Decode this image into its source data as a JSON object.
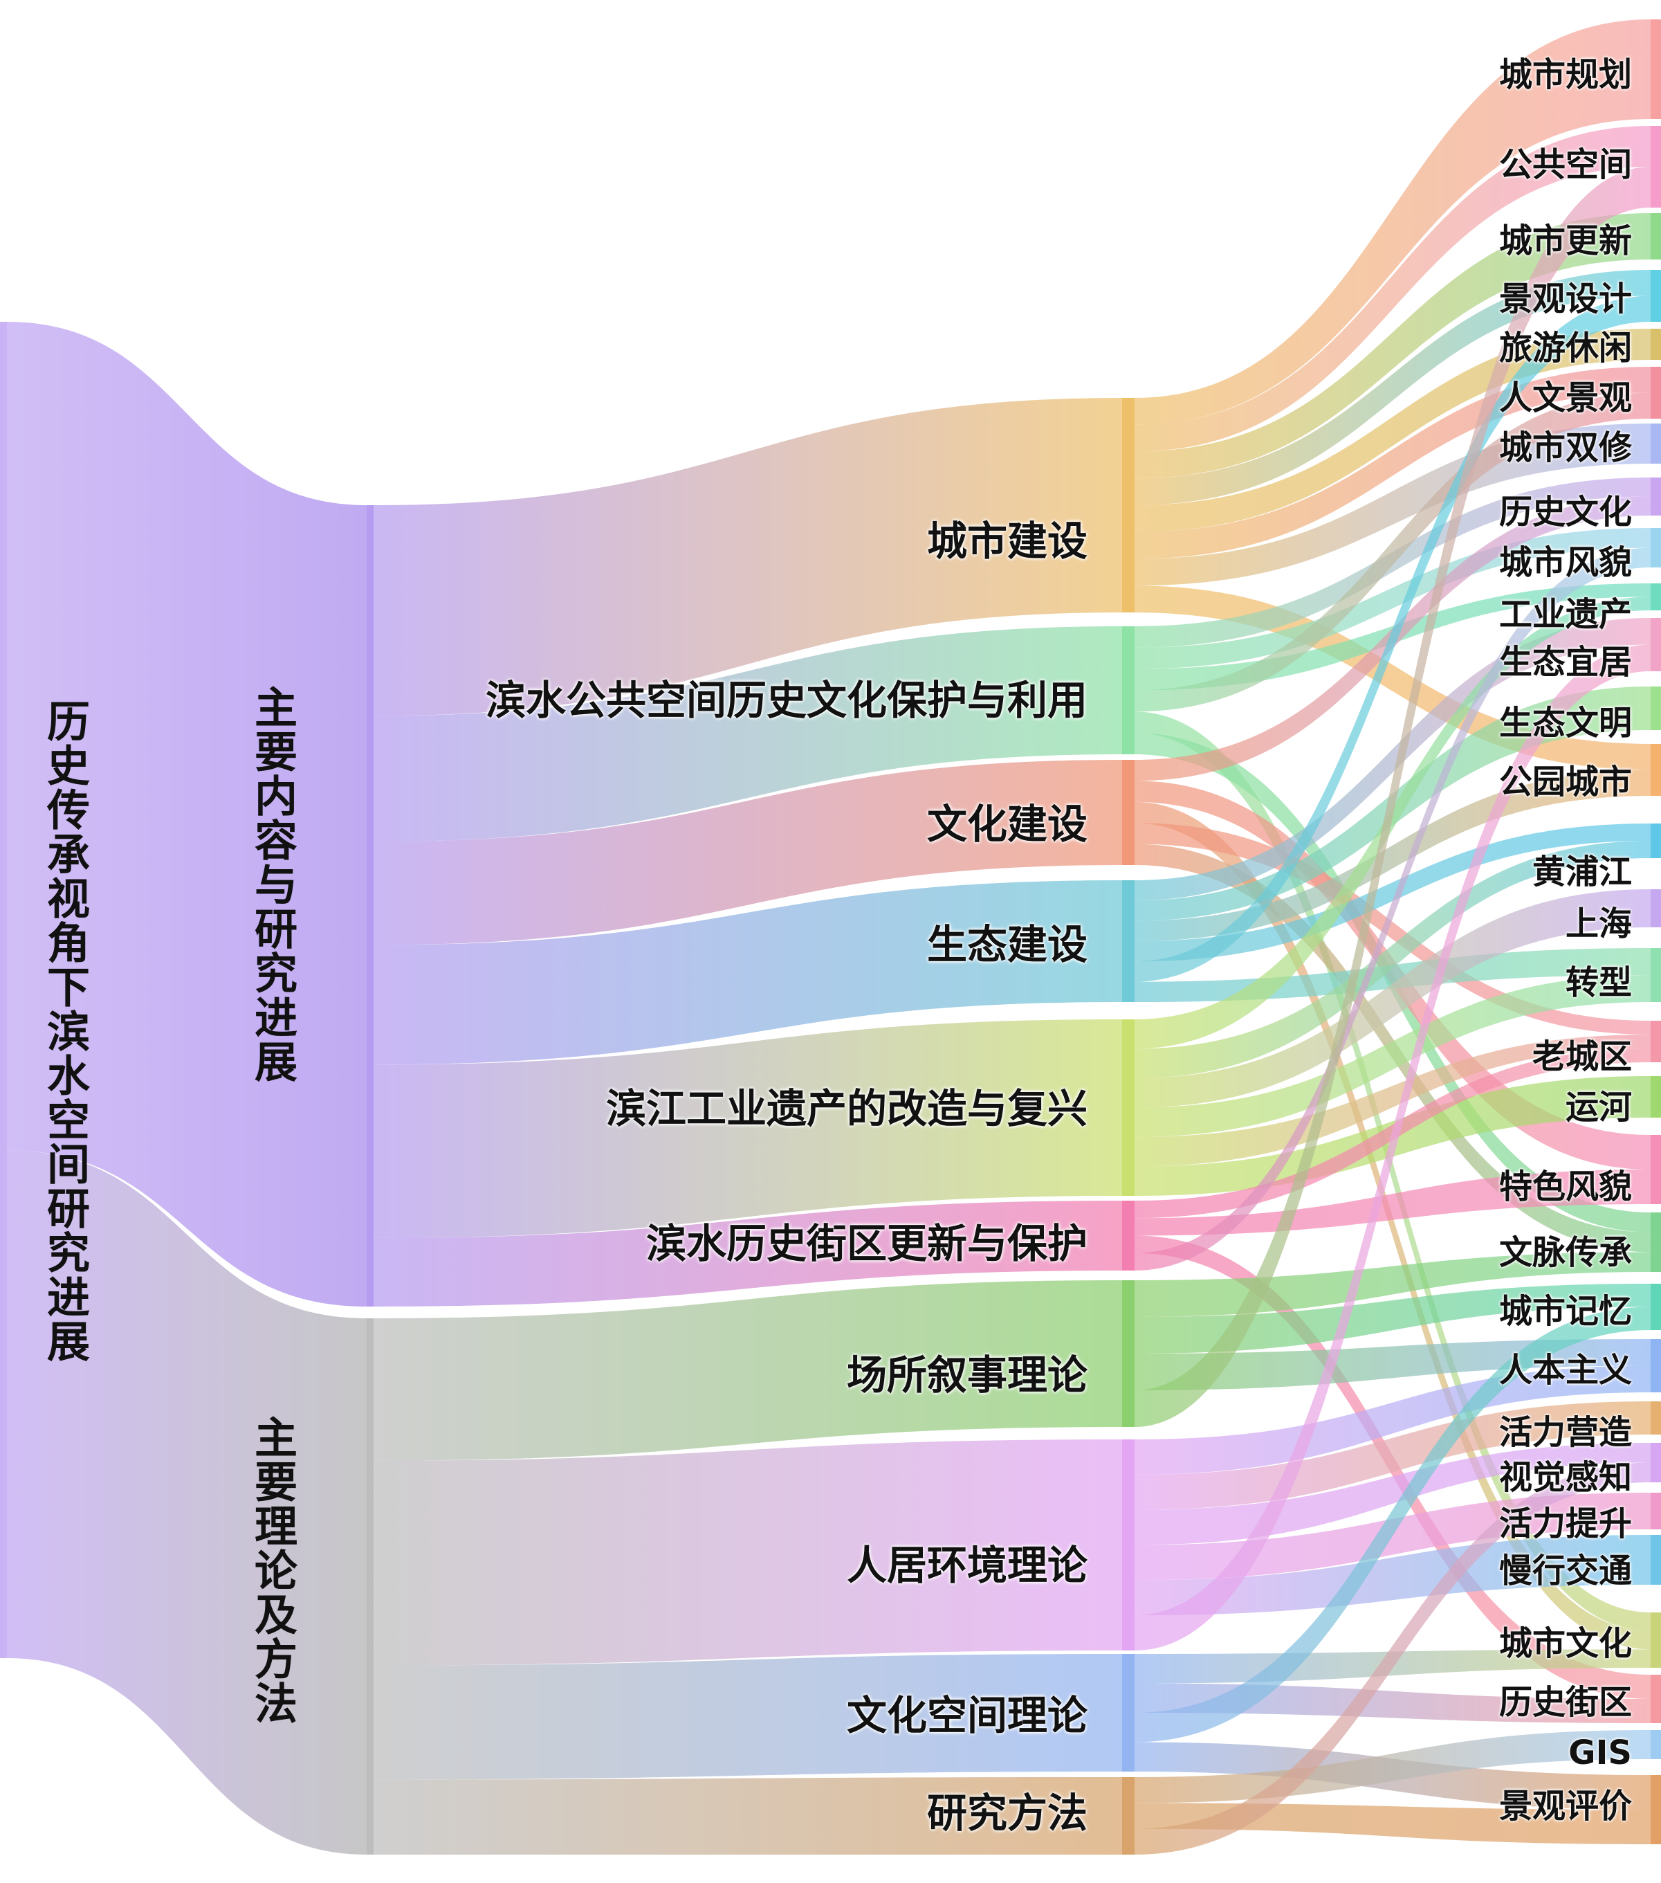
{
  "root": {
    "label": "历史传承视角下滨水空间研究进展",
    "color": "#c9b3f4"
  },
  "groups": [
    {
      "label": "主要内容与研究进展",
      "color": "#b59cf0"
    },
    {
      "label": "主要理论及方法",
      "color": "#bdbdbd"
    }
  ],
  "middle": [
    {
      "label": "城市建设",
      "color": "#eec06a"
    },
    {
      "label": "滨水公共空间历史文化保护与利用",
      "color": "#8fe2a6"
    },
    {
      "label": "文化建设",
      "color": "#f09878"
    },
    {
      "label": "生态建设",
      "color": "#6fc9d6"
    },
    {
      "label": "滨江工业遗产的改造与复兴",
      "color": "#c9e06e"
    },
    {
      "label": "滨水历史街区更新与保护",
      "color": "#f37fb0"
    },
    {
      "label": "场所叙事理论",
      "color": "#8ccf6e"
    },
    {
      "label": "人居环境理论",
      "color": "#e3a6f3"
    },
    {
      "label": "文化空间理论",
      "color": "#93b4f1"
    },
    {
      "label": "研究方法",
      "color": "#d8a46c"
    }
  ],
  "keywords": [
    {
      "label": "城市规划",
      "color": "#f6a0a0"
    },
    {
      "label": "公共空间",
      "color": "#f59ccb"
    },
    {
      "label": "城市更新",
      "color": "#8fd98a"
    },
    {
      "label": "景观设计",
      "color": "#5fcfe4"
    },
    {
      "label": "旅游休闲",
      "color": "#d8c06a"
    },
    {
      "label": "人文景观",
      "color": "#f290a0"
    },
    {
      "label": "城市双修",
      "color": "#a9b8f2"
    },
    {
      "label": "历史文化",
      "color": "#c9a6ef"
    },
    {
      "label": "城市风貌",
      "color": "#9bd4ee"
    },
    {
      "label": "工业遗产",
      "color": "#6fdcc0"
    },
    {
      "label": "生态宜居",
      "color": "#f2a4c8"
    },
    {
      "label": "生态文明",
      "color": "#9de08e"
    },
    {
      "label": "公园城市",
      "color": "#f4b26e"
    },
    {
      "label": "黄浦江",
      "color": "#5fc8e8"
    },
    {
      "label": "上海",
      "color": "#c5a8f0"
    },
    {
      "label": "转型",
      "color": "#8fe0b0"
    },
    {
      "label": "老城区",
      "color": "#f497a8"
    },
    {
      "label": "运河",
      "color": "#9ed86e"
    },
    {
      "label": "特色风貌",
      "color": "#f58fb8"
    },
    {
      "label": "文脉传承",
      "color": "#7ed490"
    },
    {
      "label": "城市记忆",
      "color": "#5fd6b8"
    },
    {
      "label": "人本主义",
      "color": "#8fb4f4"
    },
    {
      "label": "活力营造",
      "color": "#e6b070"
    },
    {
      "label": "视觉感知",
      "color": "#d6a6f2"
    },
    {
      "label": "活力提升",
      "color": "#f09acc"
    },
    {
      "label": "慢行交通",
      "color": "#6fc4e8"
    },
    {
      "label": "城市文化",
      "color": "#c9d47a"
    },
    {
      "label": "历史街区",
      "color": "#f59aa0"
    },
    {
      "label": "GIS",
      "color": "#9ecbf2"
    },
    {
      "label": "景观评价",
      "color": "#e2a066"
    }
  ]
}
